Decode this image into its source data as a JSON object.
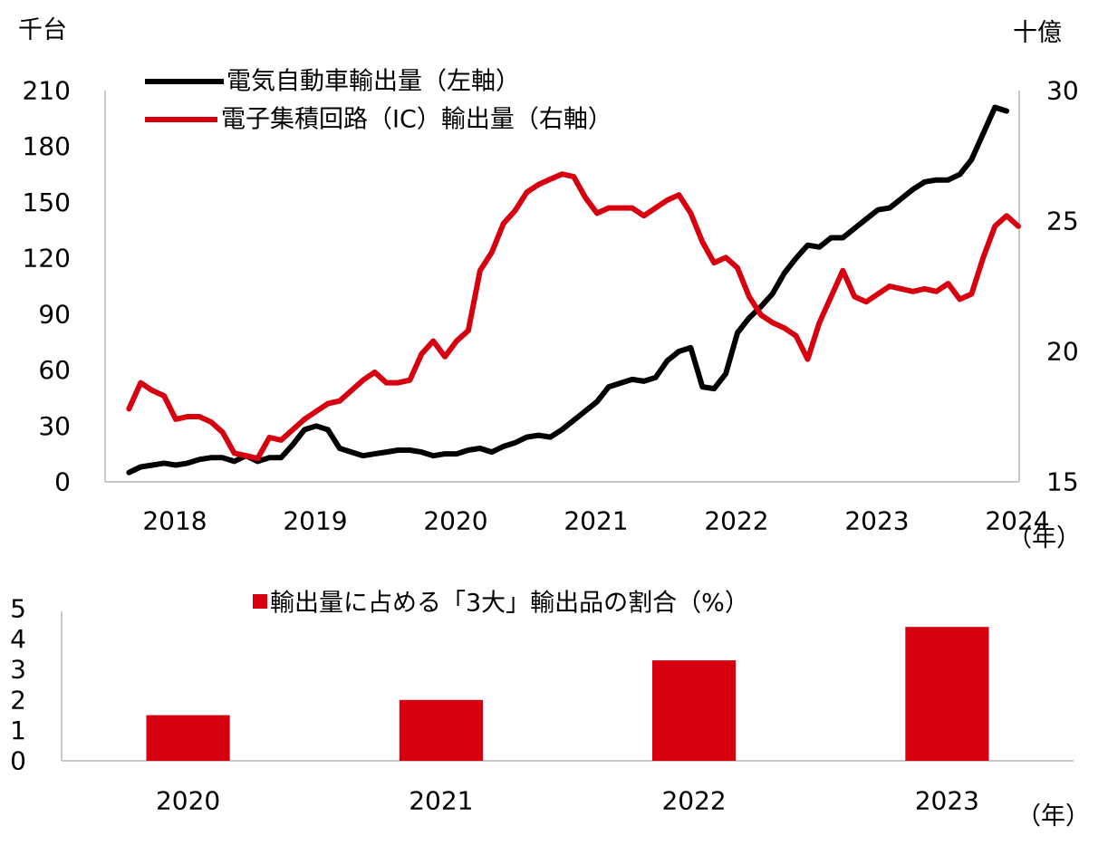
{
  "chart_data": [
    {
      "type": "line",
      "left_unit": "千台",
      "right_unit": "十億",
      "x_unit": "（年）",
      "x_ticks": [
        "2018",
        "2019",
        "2020",
        "2021",
        "2022",
        "2023",
        "2024"
      ],
      "y_left": {
        "lim": [
          0,
          210
        ],
        "ticks": [
          "0",
          "30",
          "60",
          "90",
          "120",
          "150",
          "180",
          "210"
        ]
      },
      "y_right": {
        "lim": [
          15,
          30
        ],
        "ticks": [
          "15",
          "20",
          "25",
          "30"
        ]
      },
      "colors": {
        "ev": "#000000",
        "ic": "#d7000f"
      },
      "series": [
        {
          "name": "電気自動車輸出量（左軸）",
          "axis": "left",
          "x_start": 2018.17,
          "step_months": 1,
          "values": [
            5,
            8,
            9,
            10,
            9,
            10,
            12,
            13,
            13,
            11,
            14,
            11,
            13,
            13,
            20,
            28,
            30,
            28,
            18,
            16,
            14,
            15,
            16,
            17,
            17,
            16,
            14,
            15,
            15,
            17,
            18,
            16,
            19,
            21,
            24,
            25,
            24,
            28,
            33,
            38,
            43,
            51,
            53,
            55,
            54,
            56,
            65,
            70,
            72,
            51,
            50,
            58,
            80,
            88,
            94,
            101,
            112,
            120,
            127,
            126,
            131,
            131,
            136,
            141,
            146,
            147,
            152,
            157,
            161,
            162,
            162,
            165,
            173,
            187,
            201,
            199
          ]
        },
        {
          "name": "電子集積回路（IC）輸出量（右軸）",
          "axis": "right",
          "x_start": 2018.17,
          "step_months": 1,
          "values": [
            17.8,
            18.8,
            18.5,
            18.3,
            17.4,
            17.5,
            17.5,
            17.3,
            16.9,
            16.1,
            16.0,
            15.9,
            16.7,
            16.6,
            17.0,
            17.4,
            17.7,
            18.0,
            18.1,
            18.5,
            18.9,
            19.2,
            18.8,
            18.8,
            18.9,
            19.9,
            20.4,
            19.8,
            20.4,
            20.8,
            23.1,
            23.8,
            24.9,
            25.4,
            26.1,
            26.4,
            26.6,
            26.8,
            26.7,
            25.9,
            25.3,
            25.5,
            25.5,
            25.5,
            25.2,
            25.5,
            25.8,
            26.0,
            25.3,
            24.2,
            23.4,
            23.6,
            23.2,
            22.1,
            21.4,
            21.1,
            20.9,
            20.6,
            19.7,
            21.1,
            22.1,
            23.1,
            22.1,
            21.9,
            22.2,
            22.5,
            22.4,
            22.3,
            22.4,
            22.3,
            22.6,
            22.0,
            22.2,
            23.6,
            24.8,
            25.2,
            24.8
          ]
        }
      ]
    },
    {
      "type": "bar",
      "title": "輸出量に占める「3大」輸出品の割合（%）",
      "x_unit": "（年）",
      "color": "#d7000f",
      "categories": [
        "2020",
        "2021",
        "2022",
        "2023"
      ],
      "values": [
        1.5,
        2.0,
        3.3,
        4.4
      ],
      "ylim": [
        0,
        5
      ],
      "y_ticks": [
        "0",
        "1",
        "2",
        "3",
        "4",
        "5"
      ]
    }
  ]
}
